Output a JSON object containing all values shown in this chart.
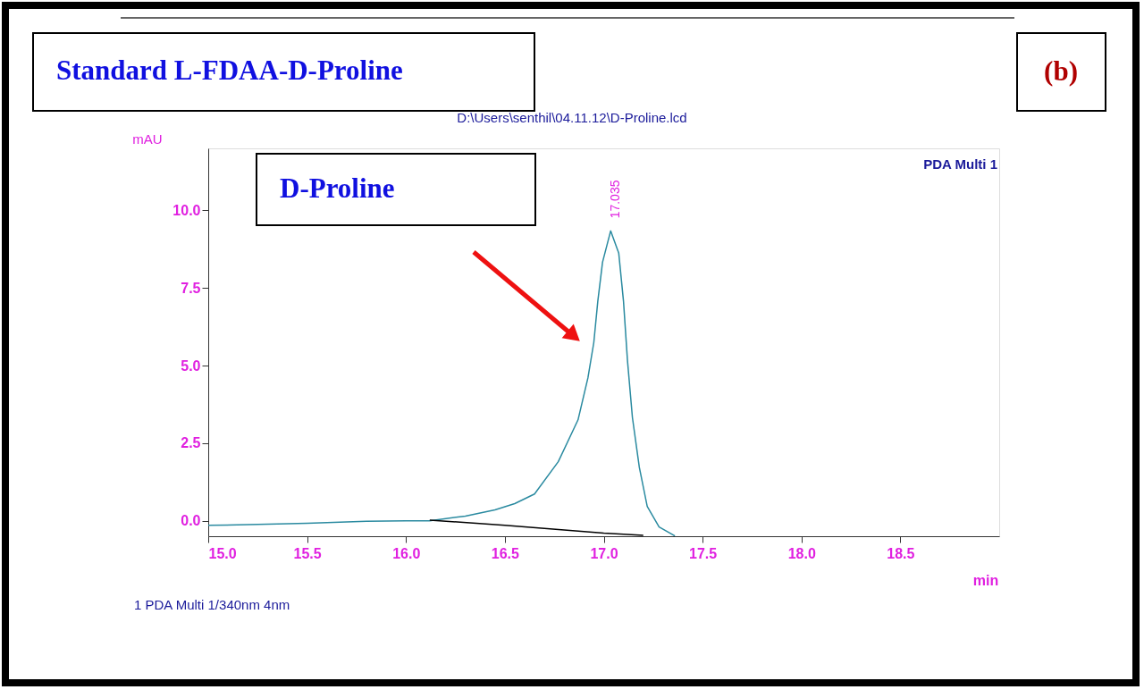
{
  "chart_data": {
    "type": "line",
    "title": "Standard L-FDAA-D-Proline",
    "subtitle": "D:\\Users\\senthil\\04.11.12\\D-Proline.lcd",
    "xlabel": "min",
    "ylabel": "mAU",
    "xlim": [
      15.0,
      19.0
    ],
    "ylim": [
      -0.5,
      12.0
    ],
    "xticks": [
      {
        "value": 15.0,
        "label": "15.0"
      },
      {
        "value": 15.5,
        "label": "15.5"
      },
      {
        "value": 16.0,
        "label": "16.0"
      },
      {
        "value": 16.5,
        "label": "16.5"
      },
      {
        "value": 17.0,
        "label": "17.0"
      },
      {
        "value": 17.5,
        "label": "17.5"
      },
      {
        "value": 18.0,
        "label": "18.0"
      },
      {
        "value": 18.5,
        "label": "18.5"
      }
    ],
    "yticks": [
      {
        "value": 0.0,
        "label": "0.0"
      },
      {
        "value": 2.5,
        "label": "2.5"
      },
      {
        "value": 5.0,
        "label": "5.0"
      },
      {
        "value": 7.5,
        "label": "7.5"
      },
      {
        "value": 10.0,
        "label": "10.0"
      }
    ],
    "grid": false,
    "legend": false,
    "marker": "none",
    "line_style": "solid",
    "series": [
      {
        "color": "#2a8aa0",
        "x": [
          15.0,
          15.25,
          15.5,
          15.8,
          16.0,
          16.12,
          16.3,
          16.45,
          16.55,
          16.65,
          16.77,
          16.87,
          16.92,
          16.95,
          16.97,
          16.994,
          17.035,
          17.076,
          17.1,
          17.12,
          17.145,
          17.18,
          17.22,
          17.28,
          17.36
        ],
        "values": [
          -0.15,
          -0.12,
          -0.08,
          -0.02,
          0.0,
          0.0,
          0.15,
          0.35,
          0.55,
          0.86,
          1.9,
          3.25,
          4.6,
          5.75,
          7.07,
          8.33,
          9.34,
          8.62,
          7.07,
          5.17,
          3.33,
          1.72,
          0.46,
          -0.2,
          -0.49
        ]
      },
      {
        "color": "#000000",
        "x": [
          16.12,
          16.5,
          16.8,
          17.0,
          17.2
        ],
        "values": [
          0.02,
          -0.15,
          -0.3,
          -0.4,
          -0.47
        ]
      }
    ],
    "annotations": [
      {
        "text": "17.035",
        "x": 17.035,
        "y": 9.34
      },
      "(b)",
      "D-Proline",
      "PDA Multi 1",
      "1 PDA Multi 1/340nm 4nm"
    ]
  }
}
